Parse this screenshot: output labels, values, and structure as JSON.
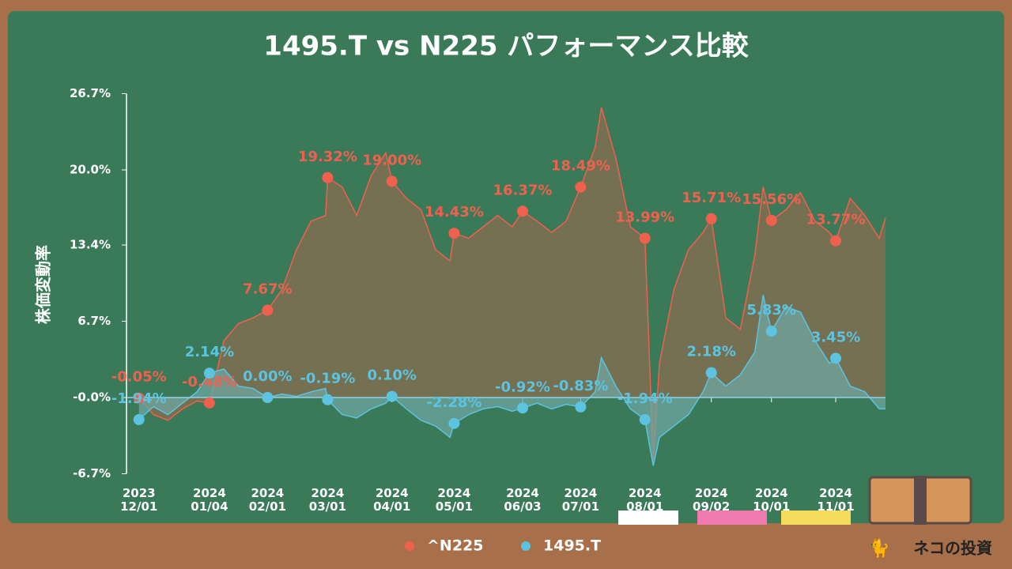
{
  "chart_data": {
    "type": "area-line",
    "title": "1495.T vs N225 パフォーマンス比較",
    "y_label": "株価変動率",
    "ylim": [
      -6.7,
      26.7
    ],
    "yticks": [
      {
        "value": 26.7,
        "label": "26.7%"
      },
      {
        "value": 20.0,
        "label": "20.0%"
      },
      {
        "value": 13.4,
        "label": "13.4%"
      },
      {
        "value": 6.7,
        "label": "6.7%"
      },
      {
        "value": 0,
        "label": "-0.0%"
      },
      {
        "value": -6.7,
        "label": "-6.7%"
      }
    ],
    "xlim": [
      "2023-11-25",
      "2024-11-25"
    ],
    "xticks": [
      {
        "value": "2023-12-01",
        "label": "2023\n12/01"
      },
      {
        "value": "2024-01-04",
        "label": "2024\n01/04"
      },
      {
        "value": "2024-02-01",
        "label": "2024\n02/01"
      },
      {
        "value": "2024-03-01",
        "label": "2024\n03/01"
      },
      {
        "value": "2024-04-01",
        "label": "2024\n04/01"
      },
      {
        "value": "2024-05-01",
        "label": "2024\n05/01"
      },
      {
        "value": "2024-06-03",
        "label": "2024\n06/03"
      },
      {
        "value": "2024-07-01",
        "label": "2024\n07/01"
      },
      {
        "value": "2024-08-01",
        "label": "2024\n08/01"
      },
      {
        "value": "2024-09-02",
        "label": "2024\n09/02"
      },
      {
        "value": "2024-10-01",
        "label": "2024\n10/01"
      },
      {
        "value": "2024-11-01",
        "label": "2024\n11/01"
      }
    ],
    "x": [
      "2023-12-01",
      "2023-12-08",
      "2023-12-15",
      "2023-12-22",
      "2023-12-29",
      "2024-01-04",
      "2024-01-11",
      "2024-01-18",
      "2024-01-25",
      "2024-02-01",
      "2024-02-08",
      "2024-02-15",
      "2024-02-22",
      "2024-02-29",
      "2024-03-01",
      "2024-03-08",
      "2024-03-15",
      "2024-03-22",
      "2024-03-29",
      "2024-04-01",
      "2024-04-08",
      "2024-04-15",
      "2024-04-22",
      "2024-04-29",
      "2024-05-01",
      "2024-05-08",
      "2024-05-15",
      "2024-05-22",
      "2024-05-29",
      "2024-06-03",
      "2024-06-10",
      "2024-06-17",
      "2024-06-24",
      "2024-07-01",
      "2024-07-08",
      "2024-07-11",
      "2024-07-18",
      "2024-07-25",
      "2024-08-01",
      "2024-08-05",
      "2024-08-08",
      "2024-08-15",
      "2024-08-22",
      "2024-08-29",
      "2024-09-02",
      "2024-09-09",
      "2024-09-16",
      "2024-09-23",
      "2024-09-27",
      "2024-10-01",
      "2024-10-08",
      "2024-10-15",
      "2024-10-22",
      "2024-10-29",
      "2024-11-01",
      "2024-11-08",
      "2024-11-15",
      "2024-11-22",
      "2024-11-25"
    ],
    "series": [
      {
        "name": "^N225",
        "color": "#f0604f",
        "fill": "#8a6d4f",
        "values": [
          -0.05,
          -1.5,
          -2.0,
          -1.0,
          -0.3,
          -0.48,
          5.0,
          6.5,
          7.0,
          7.67,
          9.5,
          13.0,
          15.5,
          16.0,
          19.32,
          18.5,
          16.0,
          19.5,
          21.5,
          19.0,
          17.5,
          16.5,
          13.0,
          12.0,
          14.43,
          14.0,
          15.0,
          16.0,
          15.0,
          16.37,
          15.5,
          14.5,
          15.5,
          18.49,
          22.0,
          25.5,
          21.0,
          15.0,
          13.99,
          -5.5,
          3.0,
          9.5,
          13.0,
          14.5,
          15.71,
          7.0,
          6.0,
          12.5,
          18.5,
          15.56,
          16.5,
          18.0,
          15.5,
          14.5,
          13.77,
          17.5,
          16.0,
          14.0,
          15.8
        ],
        "marker_values": [
          -0.05,
          -0.48,
          7.67,
          19.32,
          19.0,
          14.43,
          16.37,
          18.49,
          13.99,
          15.71,
          15.56,
          13.77
        ],
        "marker_labels": [
          "-0.05%",
          "-0.48%",
          "7.67%",
          "19.32%",
          "19.00%",
          "14.43%",
          "16.37%",
          "18.49%",
          "13.99%",
          "15.71%",
          "15.56%",
          "13.77%"
        ]
      },
      {
        "name": "1495.T",
        "color": "#5cc3e0",
        "fill": "#6fa6a0",
        "values": [
          -1.94,
          -0.8,
          -1.5,
          -0.5,
          0.5,
          2.14,
          2.5,
          1.0,
          0.8,
          0.0,
          0.3,
          0.1,
          0.5,
          0.8,
          -0.19,
          -1.5,
          -1.8,
          -1.0,
          -0.5,
          0.1,
          -1.0,
          -2.0,
          -2.5,
          -3.5,
          -2.28,
          -1.5,
          -1.0,
          -0.8,
          -1.2,
          -0.92,
          -0.5,
          -1.0,
          -0.6,
          -0.83,
          0.5,
          3.5,
          1.0,
          -1.0,
          -1.94,
          -6.0,
          -3.5,
          -2.5,
          -1.5,
          0.5,
          2.18,
          1.0,
          2.0,
          4.0,
          9.0,
          5.83,
          8.0,
          7.5,
          5.0,
          3.0,
          3.45,
          1.0,
          0.5,
          -1.0,
          -1.0
        ],
        "marker_values": [
          -1.94,
          2.14,
          0.0,
          -0.19,
          0.1,
          -2.28,
          -0.92,
          -0.83,
          -1.94,
          2.18,
          5.83,
          3.45
        ],
        "marker_labels": [
          "-1.94%",
          "2.14%",
          "0.00%",
          "-0.19%",
          "0.10%",
          "-2.28%",
          "-0.92%",
          "-0.83%",
          "-1.94%",
          "2.18%",
          "5.83%",
          "3.45%"
        ]
      }
    ]
  },
  "watermark": "ネコの投資"
}
